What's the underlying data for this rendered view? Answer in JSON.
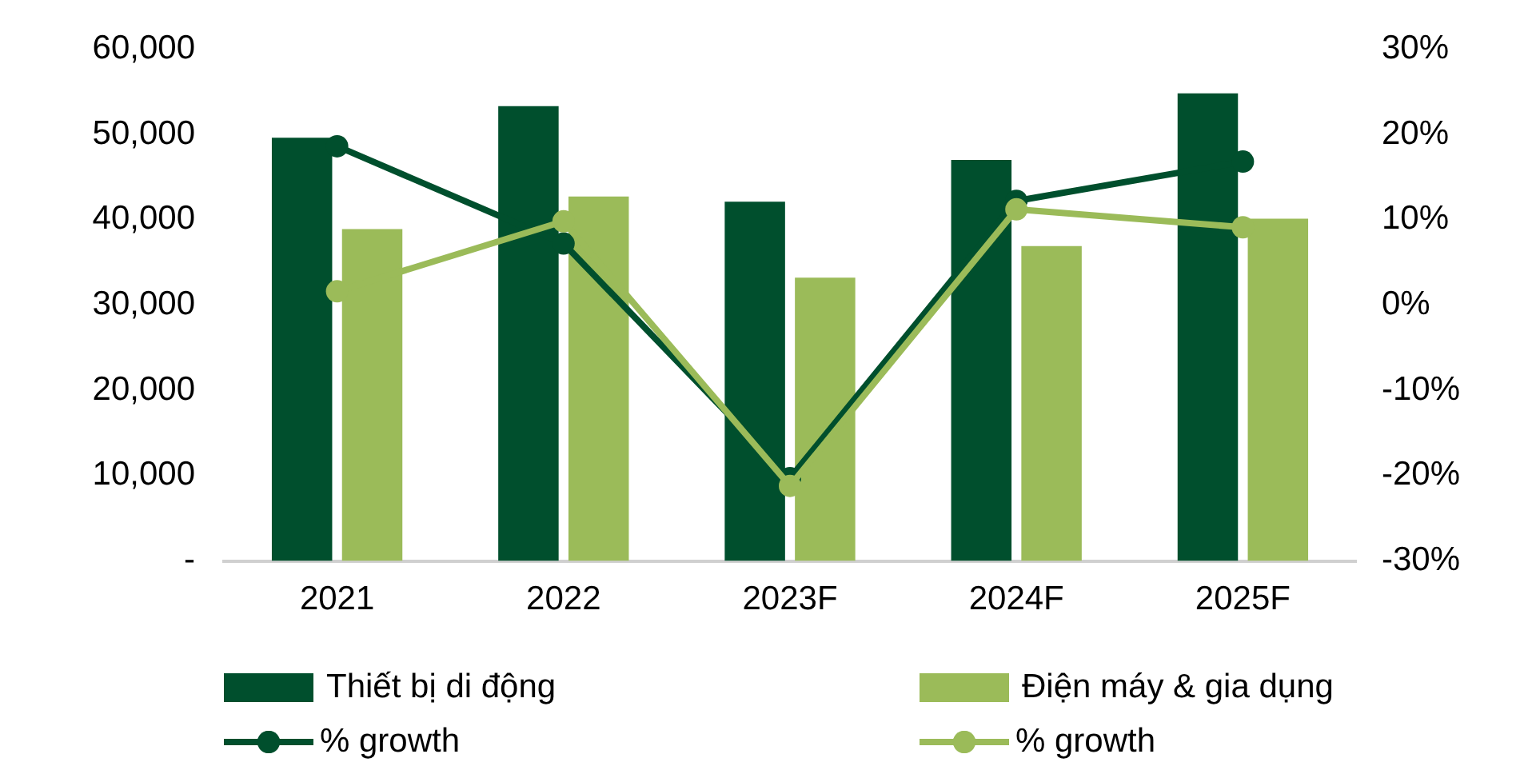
{
  "chart_data": {
    "type": "bar",
    "categories": [
      "2021",
      "2022",
      "2023F",
      "2024F",
      "2025F"
    ],
    "series": [
      {
        "name": "Thiết bị di động",
        "color": "#004f2d",
        "values": [
          49600,
          53300,
          42100,
          47000,
          54800
        ]
      },
      {
        "name": "Điện máy & gia dụng",
        "color": "#9bbb59",
        "values": [
          38900,
          42700,
          33200,
          36900,
          40100
        ]
      },
      {
        "name": "% growth",
        "type": "line",
        "axis": "y2",
        "color": "#004f2d",
        "values": [
          18.6,
          7.2,
          -20.3,
          12.2,
          16.8
        ]
      },
      {
        "name": "% growth",
        "type": "line",
        "axis": "y2",
        "color": "#9bbb59",
        "values": [
          1.6,
          9.8,
          -21.2,
          11.2,
          9.1
        ]
      }
    ],
    "ylim": [
      0,
      60000
    ],
    "yticks": [
      {
        "value": 0,
        "label": "-"
      },
      {
        "value": 10000,
        "label": "10,000"
      },
      {
        "value": 20000,
        "label": "20,000"
      },
      {
        "value": 30000,
        "label": "30,000"
      },
      {
        "value": 40000,
        "label": "40,000"
      },
      {
        "value": 50000,
        "label": "50,000"
      },
      {
        "value": 60000,
        "label": "60,000"
      }
    ],
    "y2lim": [
      -30,
      30
    ],
    "y2ticks": [
      {
        "value": -30,
        "label": "-30%"
      },
      {
        "value": -20,
        "label": "-20%"
      },
      {
        "value": -10,
        "label": "-10%"
      },
      {
        "value": 0,
        "label": "0%"
      },
      {
        "value": 10,
        "label": "10%"
      },
      {
        "value": 20,
        "label": "20%"
      },
      {
        "value": 30,
        "label": "30%"
      }
    ],
    "grid": false,
    "legend": "bottom",
    "marker": "circle",
    "line_style": "solid"
  }
}
